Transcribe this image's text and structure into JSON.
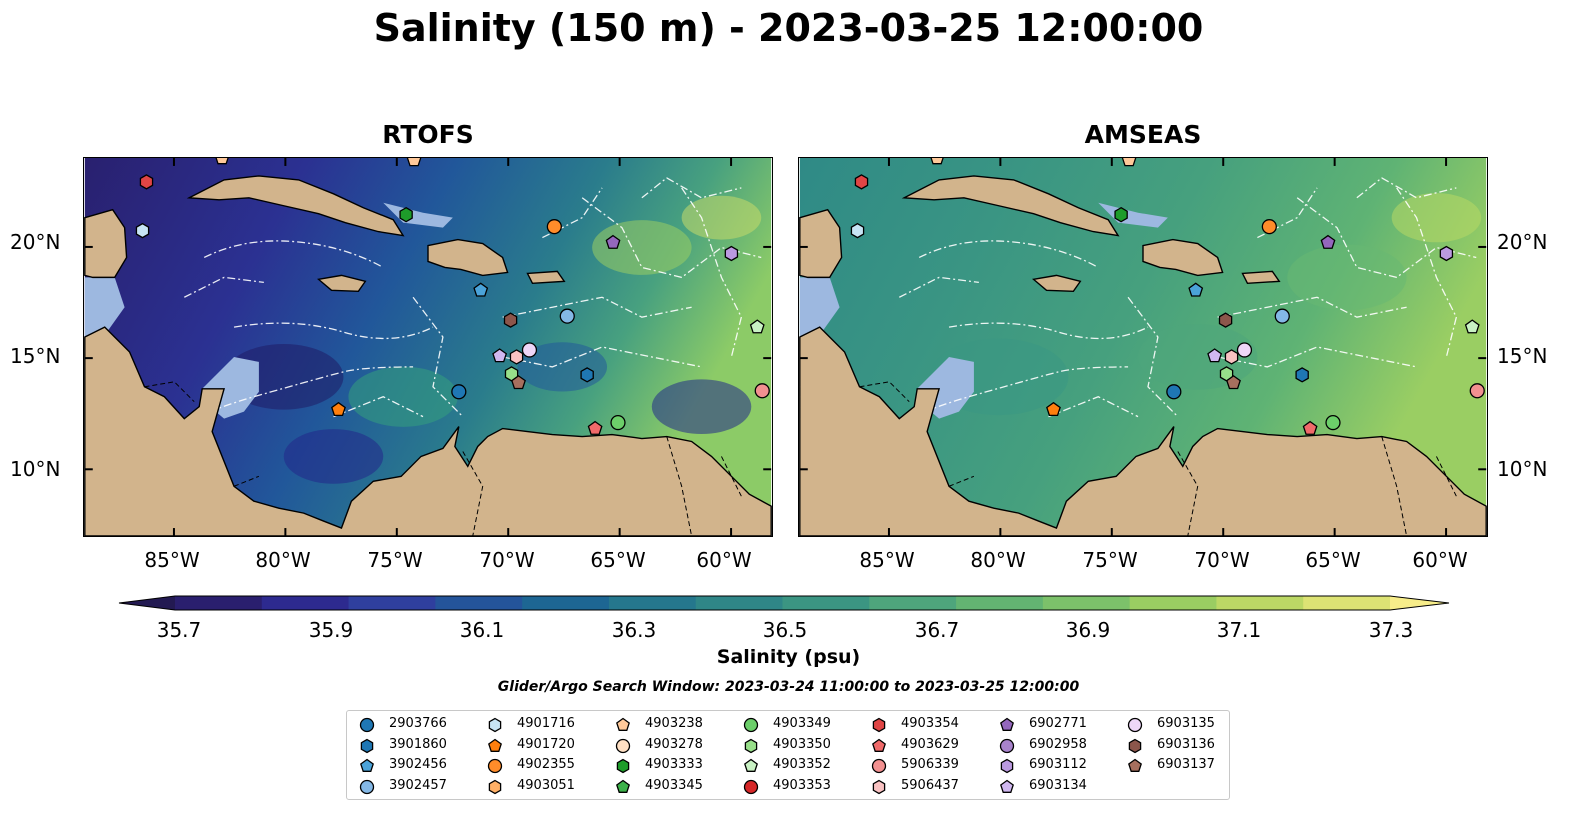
{
  "title": "Salinity (150 m) - 2023-03-25 12:00:00",
  "panels": [
    {
      "title": "RTOFS",
      "field": "rtofs"
    },
    {
      "title": "AMSEAS",
      "field": "amseas"
    }
  ],
  "lon_ticks": [
    "85°W",
    "80°W",
    "75°W",
    "70°W",
    "65°W",
    "60°W"
  ],
  "lat_ticks": [
    "20°N",
    "15°N",
    "10°N"
  ],
  "colorbar": {
    "label": "Salinity (psu)",
    "ticks": [
      "35.7",
      "35.9",
      "36.1",
      "36.3",
      "36.5",
      "36.7",
      "36.9",
      "37.1",
      "37.3"
    ],
    "range": [
      35.6,
      37.4
    ],
    "colors": [
      "#2a1f6e",
      "#2d2a8f",
      "#2f3f9e",
      "#24549a",
      "#1d6693",
      "#25778d",
      "#2f8687",
      "#3b9582",
      "#4ea57c",
      "#63b472",
      "#7cc16a",
      "#9acd62",
      "#bcd865",
      "#dde374"
    ],
    "extend": "both"
  },
  "search_window": "Glider/Argo Search Window: 2023-03-24 11:00:00 to 2023-03-25 12:00:00",
  "colors": {
    "land": "#d2b48c",
    "shallow": "#9db8e0",
    "contour": "#ffffff"
  },
  "legend": [
    {
      "id": "2903766",
      "marker": "circle",
      "color": "#1f77b4"
    },
    {
      "id": "3901860",
      "marker": "hexagon",
      "color": "#1f77b4"
    },
    {
      "id": "3902456",
      "marker": "pentagon",
      "color": "#4ba3d9"
    },
    {
      "id": "3902457",
      "marker": "circle",
      "color": "#84b8e6"
    },
    {
      "id": "4901716",
      "marker": "hexagon",
      "color": "#c7e4f4"
    },
    {
      "id": "4901720",
      "marker": "pentagon",
      "color": "#ff7f0e"
    },
    {
      "id": "4902355",
      "marker": "circle",
      "color": "#ff8c2a"
    },
    {
      "id": "4903051",
      "marker": "hexagon",
      "color": "#ffb066"
    },
    {
      "id": "4903238",
      "marker": "pentagon",
      "color": "#ffc99a"
    },
    {
      "id": "4903278",
      "marker": "circle",
      "color": "#ffe0c4"
    },
    {
      "id": "4903333",
      "marker": "hexagon",
      "color": "#1e9c2a"
    },
    {
      "id": "4903345",
      "marker": "pentagon",
      "color": "#3cb14a"
    },
    {
      "id": "4903349",
      "marker": "circle",
      "color": "#6ccf6a"
    },
    {
      "id": "4903350",
      "marker": "hexagon",
      "color": "#98df8a"
    },
    {
      "id": "4903352",
      "marker": "pentagon",
      "color": "#c9f2c4"
    },
    {
      "id": "4903353",
      "marker": "circle",
      "color": "#d62728"
    },
    {
      "id": "4903354",
      "marker": "hexagon",
      "color": "#e04545"
    },
    {
      "id": "4903629",
      "marker": "pentagon",
      "color": "#f06a6a"
    },
    {
      "id": "5906339",
      "marker": "circle",
      "color": "#f29090"
    },
    {
      "id": "5906437",
      "marker": "hexagon",
      "color": "#f9c2c2"
    },
    {
      "id": "6902771",
      "marker": "pentagon",
      "color": "#9467bd"
    },
    {
      "id": "6902958",
      "marker": "circle",
      "color": "#a883cc"
    },
    {
      "id": "6903112",
      "marker": "hexagon",
      "color": "#bb9ae0"
    },
    {
      "id": "6903134",
      "marker": "pentagon",
      "color": "#d0b8f0"
    },
    {
      "id": "6903135",
      "marker": "circle",
      "color": "#eed6f7"
    },
    {
      "id": "6903136",
      "marker": "hexagon",
      "color": "#8c564b"
    },
    {
      "id": "6903137",
      "marker": "pentagon",
      "color": "#a66f5e"
    }
  ]
}
